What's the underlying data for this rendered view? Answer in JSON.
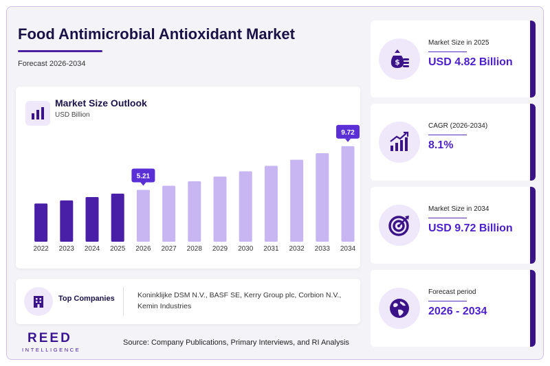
{
  "header": {
    "title": "Food Antimicrobial Antioxidant Market",
    "subtitle": "Forecast 2026-2034"
  },
  "chart_card": {
    "title": "Market Size Outlook",
    "unit": "USD Billion",
    "icon": "bar-chart-icon"
  },
  "chart_data": {
    "type": "bar",
    "title": "Market Size Outlook",
    "ylabel": "USD Billion",
    "categories": [
      "2022",
      "2023",
      "2024",
      "2025",
      "2026",
      "2027",
      "2028",
      "2029",
      "2030",
      "2031",
      "2032",
      "2033",
      "2034"
    ],
    "values": [
      3.8,
      4.12,
      4.46,
      4.82,
      5.21,
      5.63,
      6.09,
      6.58,
      7.12,
      7.69,
      8.32,
      8.99,
      9.72
    ],
    "historical_years": [
      "2022",
      "2023",
      "2024",
      "2025"
    ],
    "labeled_points": [
      {
        "category": "2026",
        "label": "5.21"
      },
      {
        "category": "2034",
        "label": "9.72"
      }
    ],
    "ylim": [
      0,
      10
    ],
    "grid": false,
    "colors": {
      "historical": "#4a1fa8",
      "forecast": "#c7b6f1",
      "label_bg": "#5b2fd6"
    }
  },
  "companies": {
    "label": "Top Companies",
    "icon": "building-icon",
    "text": "Koninklijke DSM N.V., BASF SE, Kerry Group plc, Corbion N.V., Kemin Industries"
  },
  "brand": {
    "name": "REED",
    "tagline": "INTELLIGENCE"
  },
  "source": "Source: Company Publications, Primary Interviews, and RI Analysis",
  "kpis": [
    {
      "label": "Market Size in 2025",
      "value": "USD 4.82 Billion",
      "icon": "money-bag-icon"
    },
    {
      "label": "CAGR (2026-2034)",
      "value": "8.1%",
      "icon": "growth-chart-icon"
    },
    {
      "label": "Market Size in 2034",
      "value": "USD 9.72 Billion",
      "icon": "target-icon"
    },
    {
      "label": "Forecast period",
      "value": "2026 - 2034",
      "icon": "globe-icon"
    }
  ],
  "colors": {
    "accent": "#4b1fc9",
    "dark": "#3a1388",
    "light": "#efe8fb"
  }
}
